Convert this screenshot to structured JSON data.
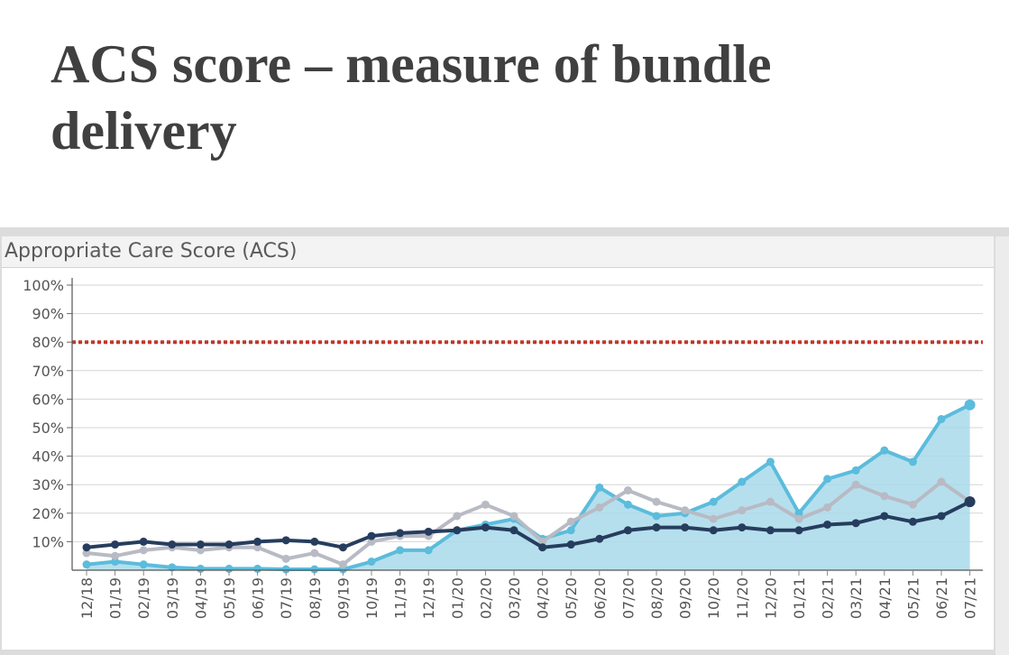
{
  "slide": {
    "title": "ACS score – measure of bundle delivery"
  },
  "panel": {
    "title": "Appropriate Care Score (ACS)"
  },
  "chart_data": {
    "type": "line",
    "title": "Appropriate Care Score (ACS)",
    "xlabel": "",
    "ylabel": "",
    "ylim": [
      0,
      100
    ],
    "yticks": [
      "10%",
      "20%",
      "30%",
      "40%",
      "50%",
      "60%",
      "70%",
      "80%",
      "90%",
      "100%"
    ],
    "grid": true,
    "categories": [
      "12/18",
      "01/19",
      "02/19",
      "03/19",
      "04/19",
      "05/19",
      "06/19",
      "07/19",
      "08/19",
      "09/19",
      "10/19",
      "11/19",
      "12/19",
      "01/20",
      "02/20",
      "03/20",
      "04/20",
      "05/20",
      "06/20",
      "07/20",
      "08/20",
      "09/20",
      "10/20",
      "11/20",
      "12/20",
      "01/21",
      "02/21",
      "03/21",
      "04/21",
      "05/21",
      "06/21",
      "07/21"
    ],
    "target_line": {
      "value": 80,
      "color": "#c0392b"
    },
    "series": [
      {
        "style": "area",
        "color": "#5bbcdc",
        "fill": "#a9d9ea",
        "values": [
          2,
          3,
          2,
          1,
          0.5,
          0.5,
          0.5,
          0.3,
          0.3,
          0.3,
          3,
          7,
          7,
          14,
          16,
          18,
          11,
          14,
          29,
          23,
          19,
          20,
          24,
          31,
          38,
          20,
          32,
          35,
          42,
          38,
          53,
          58
        ]
      },
      {
        "style": "line",
        "color": "#b8bac4",
        "values": [
          6,
          5,
          7,
          8,
          7,
          8,
          8,
          4,
          6,
          2,
          10,
          12,
          12,
          19,
          23,
          19,
          10,
          17,
          22,
          28,
          24,
          21,
          18,
          21,
          24,
          18,
          22,
          30,
          26,
          23,
          31,
          24
        ]
      },
      {
        "style": "line",
        "color": "#263d5e",
        "values": [
          8,
          9,
          10,
          9,
          9,
          9,
          10,
          10.5,
          10,
          8,
          12,
          13,
          13.5,
          14,
          15,
          14,
          8,
          9,
          11,
          14,
          15,
          15,
          14,
          15,
          14,
          14,
          16,
          16.5,
          19,
          17,
          19,
          24
        ]
      }
    ]
  }
}
